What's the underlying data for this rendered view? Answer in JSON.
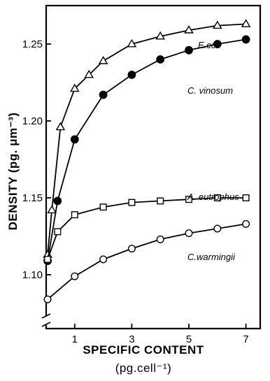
{
  "chart_data": {
    "type": "line",
    "title": "",
    "xlabel": "SPECIFIC CONTENT",
    "xlabel_unit": "(pg.cell⁻¹)",
    "ylabel": "DENSITY (pg. μm⁻³)",
    "xlim": [
      0,
      7.5
    ],
    "ylim": [
      1.065,
      1.275
    ],
    "xticks": [
      1,
      3,
      5,
      7
    ],
    "yticks": [
      1.1,
      1.15,
      1.2,
      1.25
    ],
    "xtick_labels": [
      "1",
      "3",
      "5",
      "7"
    ],
    "ytick_labels": [
      "1.10",
      "1.15",
      "1.20",
      "1.25"
    ],
    "y_axis_break": true,
    "grid": false,
    "series": [
      {
        "name": "E.coli",
        "marker": "triangle-open",
        "x": [
          0.05,
          0.2,
          0.5,
          1.0,
          1.5,
          2.0,
          3.0,
          4.0,
          5.0,
          6.0,
          7.0
        ],
        "y": [
          1.113,
          1.142,
          1.196,
          1.221,
          1.23,
          1.239,
          1.25,
          1.255,
          1.259,
          1.262,
          1.263
        ]
      },
      {
        "name": "C. vinosum",
        "marker": "circle-filled",
        "x": [
          0.05,
          0.4,
          1.0,
          2.0,
          3.0,
          4.0,
          5.0,
          6.0,
          7.0
        ],
        "y": [
          1.109,
          1.148,
          1.188,
          1.217,
          1.23,
          1.24,
          1.246,
          1.25,
          1.253
        ]
      },
      {
        "name": "A. eutrophus",
        "marker": "square-open",
        "x": [
          0.05,
          0.4,
          1.0,
          2.0,
          3.0,
          4.0,
          5.0,
          6.0,
          7.0
        ],
        "y": [
          1.11,
          1.128,
          1.139,
          1.144,
          1.147,
          1.148,
          1.149,
          1.15,
          1.15
        ]
      },
      {
        "name": "C.warmingii",
        "marker": "circle-open",
        "x": [
          0.05,
          1.0,
          2.0,
          3.0,
          4.0,
          5.0,
          6.0,
          7.0
        ],
        "y": [
          1.084,
          1.099,
          1.11,
          1.117,
          1.123,
          1.127,
          1.13,
          1.133
        ]
      }
    ]
  }
}
